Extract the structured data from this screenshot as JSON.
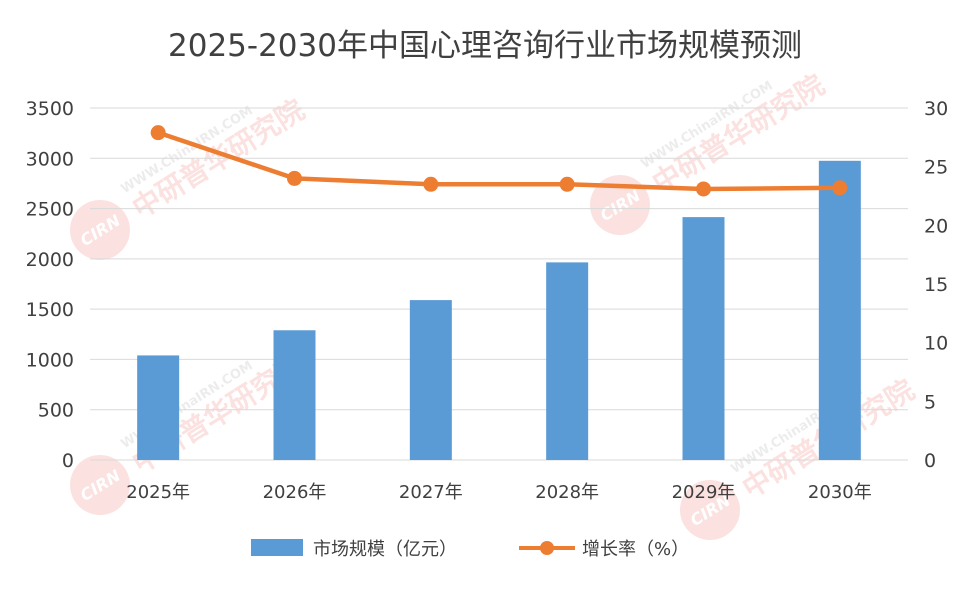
{
  "chart_data": {
    "type": "bar",
    "title": "2025-2030年中国心理咨询行业市场规模预测",
    "categories": [
      "2025年",
      "2026年",
      "2027年",
      "2028年",
      "2029年",
      "2030年"
    ],
    "series": [
      {
        "name": "市场规模（亿元）",
        "type": "bar",
        "axis": "left",
        "color": "#5B9BD5",
        "values": [
          1040,
          1290,
          1590,
          1965,
          2415,
          2975
        ]
      },
      {
        "name": "增长率（%）",
        "type": "line",
        "axis": "right",
        "color": "#ED7D31",
        "values": [
          27.9,
          24.0,
          23.5,
          23.5,
          23.1,
          23.2
        ]
      }
    ],
    "left_axis": {
      "min": 0,
      "max": 3500,
      "ticks": [
        0,
        500,
        1000,
        1500,
        2000,
        2500,
        3000,
        3500
      ]
    },
    "right_axis": {
      "min": 0,
      "max": 30,
      "ticks": [
        0,
        5,
        10,
        15,
        20,
        25,
        30
      ]
    },
    "grid": true,
    "legend_position": "bottom"
  },
  "watermark": {
    "text": "中研普华研究院",
    "url_text": "WWW.ChinaIRN.COM",
    "logo_text": "CIRN"
  }
}
